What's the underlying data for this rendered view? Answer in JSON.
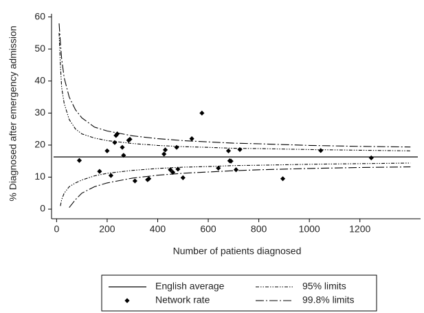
{
  "chart_data": {
    "type": "funnel",
    "x_label": "Number of patients diagnosed",
    "y_label": "% Diagnosed after emergency admission",
    "xlim": [
      -20,
      1440
    ],
    "ylim": [
      -3,
      61
    ],
    "xticks": [
      0,
      200,
      400,
      600,
      800,
      1000,
      1200
    ],
    "yticks": [
      0,
      10,
      20,
      30,
      40,
      50,
      60
    ],
    "reference": {
      "name": "English average",
      "value": 16.3,
      "color": "#000000"
    },
    "points": {
      "name": "Network rate",
      "color": "#000000",
      "x": [
        90,
        170,
        200,
        215,
        230,
        235,
        240,
        260,
        265,
        285,
        290,
        310,
        360,
        365,
        425,
        430,
        450,
        460,
        475,
        480,
        500,
        535,
        575,
        640,
        680,
        685,
        690,
        710,
        725,
        895,
        1045,
        1245
      ],
      "values": [
        15.2,
        11.8,
        18.2,
        10.5,
        20.8,
        23,
        23.5,
        19.3,
        16.8,
        21.5,
        21.8,
        8.8,
        9.2,
        9.5,
        17.2,
        18.5,
        12.3,
        11.5,
        19.3,
        12.5,
        9.8,
        22,
        30,
        12.8,
        18.2,
        15.1,
        15,
        12.3,
        18.6,
        9.5,
        18.3,
        16
      ]
    },
    "limits_x": [
      10,
      15,
      20,
      30,
      50,
      75,
      100,
      150,
      200,
      300,
      400,
      500,
      600,
      700,
      800,
      1000,
      1200,
      1400
    ],
    "limits": [
      {
        "name": "95% limits",
        "color": "#000000",
        "upper": [
          55,
          45,
          38,
          33,
          28,
          25,
          23.5,
          22.2,
          21.4,
          20.5,
          19.9,
          19.5,
          19.3,
          19.0,
          18.9,
          18.6,
          18.4,
          18.2
        ],
        "lower": [
          null,
          1,
          3,
          5,
          7,
          8.2,
          9.1,
          10.4,
          11.2,
          12.1,
          12.7,
          13.1,
          13.3,
          13.6,
          13.7,
          14.0,
          14.2,
          14.4
        ]
      },
      {
        "name": "99.8% limits",
        "color": "#000000",
        "upper": [
          58,
          52,
          47,
          41,
          35,
          31,
          28.5,
          25.6,
          24.4,
          22.9,
          22.0,
          21.4,
          21.0,
          20.6,
          20.4,
          19.9,
          19.6,
          19.4
        ],
        "lower": [
          null,
          null,
          null,
          null,
          0.5,
          3,
          5,
          7,
          8.2,
          9.7,
          10.6,
          11.2,
          11.6,
          12.0,
          12.3,
          12.7,
          13.0,
          13.2
        ]
      }
    ]
  }
}
